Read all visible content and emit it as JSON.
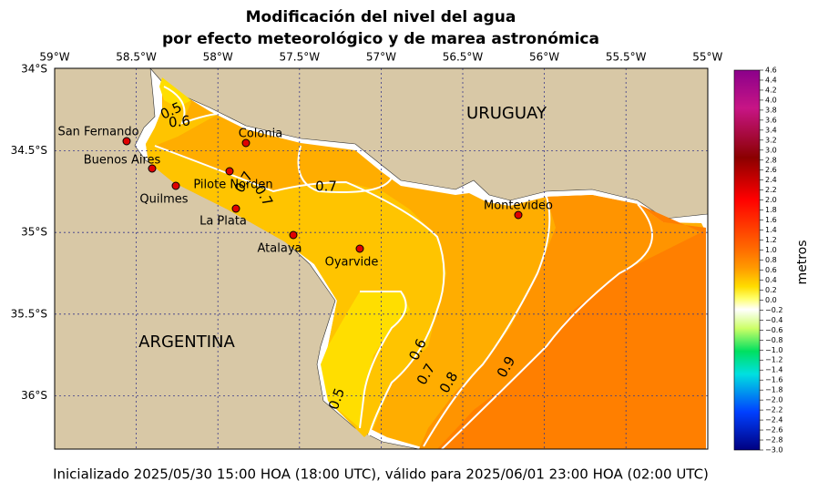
{
  "header": {
    "title_line1": "Modificación del nivel del agua",
    "title_line2": "por efecto meteorológico y de marea astronómica"
  },
  "lon_labels": [
    "59°W",
    "58.5°W",
    "58°W",
    "57.5°W",
    "57°W",
    "56.5°W",
    "56°W",
    "55.5°W",
    "55°W"
  ],
  "lat_labels": [
    "34°S",
    "34.5°S",
    "35°S",
    "35.5°S",
    "36°S"
  ],
  "countries": [
    "URUGUAY",
    "ARGENTINA"
  ],
  "places": [
    "San Fernando",
    "Buenos Aires",
    "Quilmes",
    "Colonia",
    "Pilote Norden",
    "La Plata",
    "Atalaya",
    "Oyarvide",
    "Montevideo"
  ],
  "contour_labels": [
    "0.5",
    "0.6",
    "0.7",
    "0.7",
    "0.7",
    "0.6",
    "0.7",
    "0.8",
    "0.9",
    "0.5"
  ],
  "colorbar": {
    "label": "metros",
    "ticks": [
      "4.6",
      "4.4",
      "4.2",
      "4.0",
      "3.8",
      "3.6",
      "3.4",
      "3.2",
      "3.0",
      "2.8",
      "2.6",
      "2.4",
      "2.2",
      "2.0",
      "1.8",
      "1.6",
      "1.4",
      "1.2",
      "1.0",
      "0.8",
      "0.6",
      "0.4",
      "0.2",
      "0.0",
      "−0.2",
      "−0.4",
      "−0.6",
      "−0.8",
      "−1.0",
      "−1.2",
      "−1.4",
      "−1.6",
      "−1.8",
      "−2.0",
      "−2.2",
      "−2.4",
      "−2.6",
      "−2.8",
      "−3.0"
    ]
  },
  "footer": "Inicializado 2025/05/30 15:00 HOA (18:00 UTC), válido para 2025/06/01 23:00 HOA (02:00 UTC)"
}
